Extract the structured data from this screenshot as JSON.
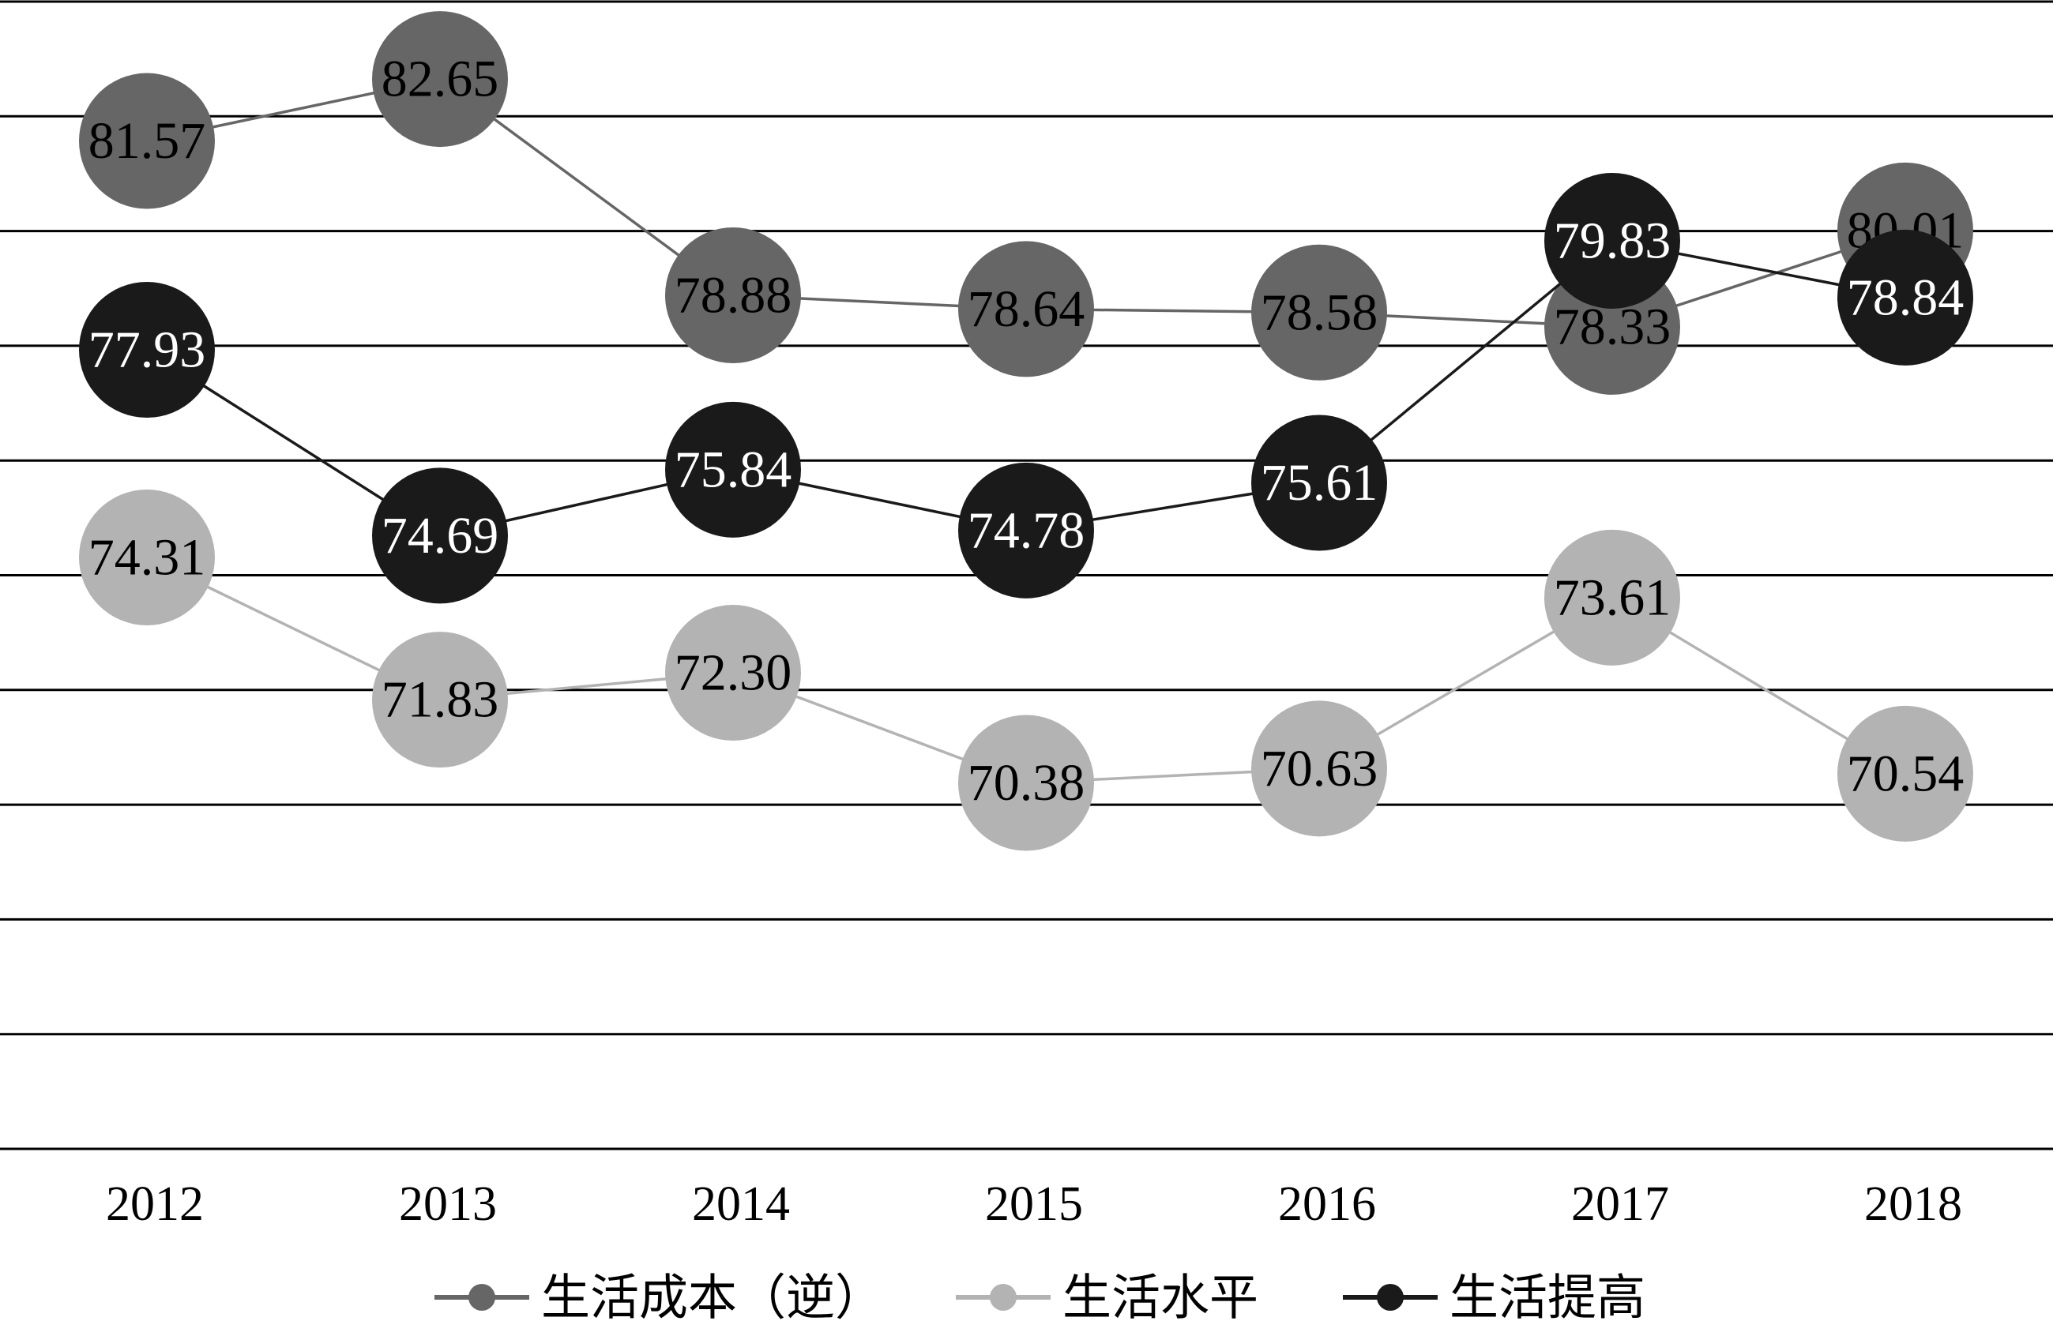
{
  "chart_data": {
    "type": "line",
    "title": "",
    "xlabel": "",
    "ylabel": "",
    "categories": [
      "2012",
      "2013",
      "2014",
      "2015",
      "2016",
      "2017",
      "2018"
    ],
    "ylim": [
      64,
      84
    ],
    "ytick_step": 2,
    "grid": true,
    "legend_position": "bottom",
    "series": [
      {
        "name": "生活成本（逆）",
        "color": "#666666",
        "label_color": "#000000",
        "values": [
          81.57,
          82.65,
          78.88,
          78.64,
          78.58,
          78.33,
          80.01
        ],
        "labels": [
          "81.57",
          "82.65",
          "78.88",
          "78.64",
          "78.58",
          "78.33",
          "80.01"
        ]
      },
      {
        "name": "生活水平",
        "color": "#b3b3b3",
        "label_color": "#000000",
        "values": [
          74.31,
          71.83,
          72.3,
          70.38,
          70.63,
          73.61,
          70.54
        ],
        "labels": [
          "74.31",
          "71.83",
          "72.30",
          "70.38",
          "70.63",
          "73.61",
          "70.54"
        ]
      },
      {
        "name": "生活提高",
        "color": "#1a1a1a",
        "label_color": "#ffffff",
        "values": [
          77.93,
          74.69,
          75.84,
          74.78,
          75.61,
          79.83,
          78.84
        ],
        "labels": [
          "77.93",
          "74.69",
          "75.84",
          "74.78",
          "75.61",
          "79.83",
          "78.84"
        ]
      }
    ]
  }
}
